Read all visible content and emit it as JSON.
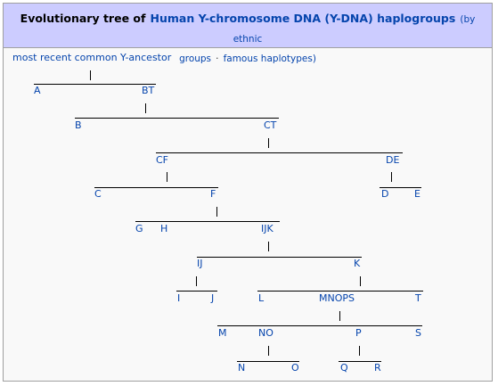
{
  "title": {
    "prefix": "Evolutionary tree of",
    "link": "Human Y-chromosome DNA (Y-DNA) haplogroups",
    "note_part1": "(by ethnic",
    "note_part2": "groups",
    "separator": "·",
    "note_part3": "famous haplotypes)"
  },
  "root_label": "most recent common Y-ancestor",
  "nodes": {
    "A": "A",
    "BT": "BT",
    "B": "B",
    "CT": "CT",
    "CF": "CF",
    "DE": "DE",
    "C": "C",
    "F": "F",
    "D": "D",
    "E": "E",
    "G": "G",
    "H": "H",
    "IJK": "IJK",
    "IJ": "IJ",
    "K": "K",
    "I": "I",
    "J": "J",
    "L": "L",
    "MNOPS": "MNOPS",
    "T": "T",
    "M": "M",
    "NO": "NO",
    "P": "P",
    "S": "S",
    "N": "N",
    "O": "O",
    "Q": "Q",
    "R": "R"
  }
}
